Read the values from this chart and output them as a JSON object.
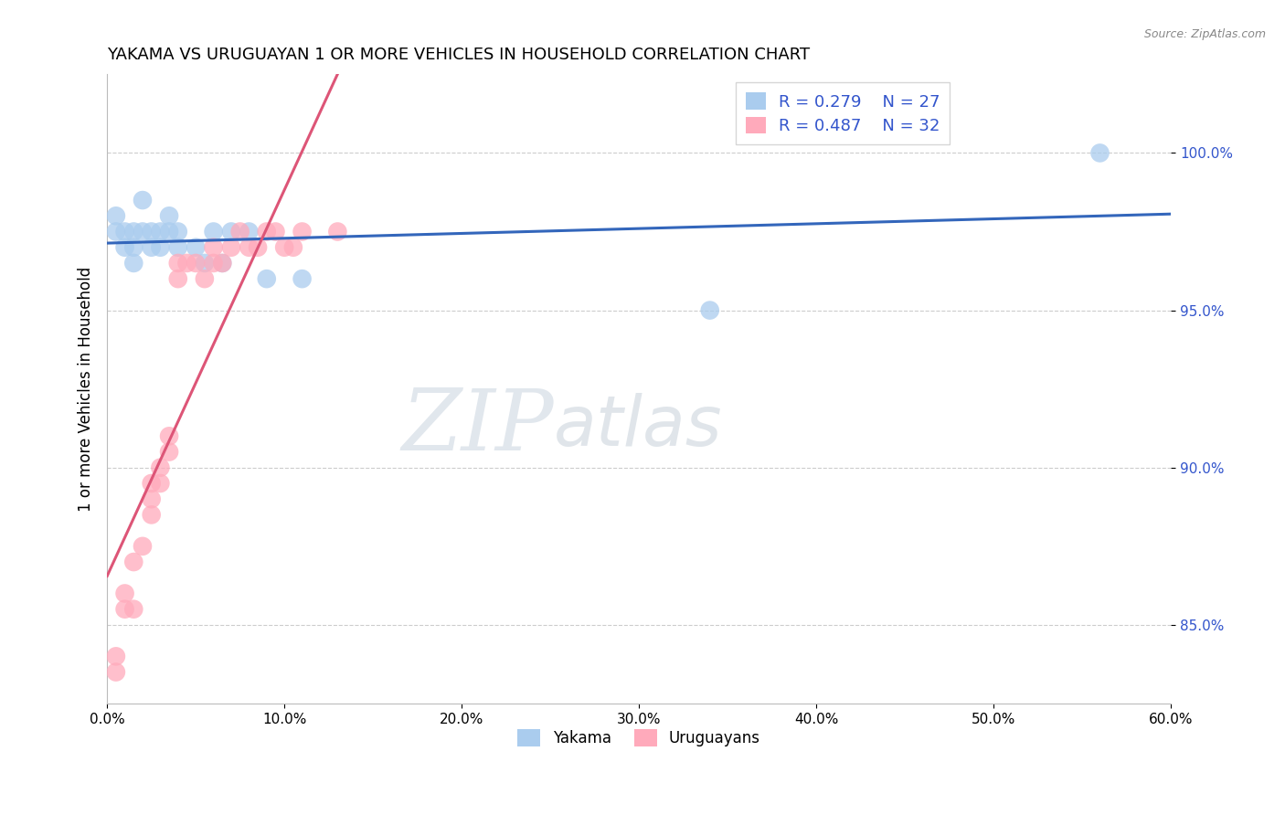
{
  "title": "YAKAMA VS URUGUAYAN 1 OR MORE VEHICLES IN HOUSEHOLD CORRELATION CHART",
  "source": "Source: ZipAtlas.com",
  "xlim": [
    0.0,
    0.6
  ],
  "ylim": [
    0.825,
    1.025
  ],
  "yakama_R": 0.279,
  "yakama_N": 27,
  "uruguayan_R": 0.487,
  "uruguayan_N": 32,
  "yakama_color": "#AACCEE",
  "uruguayan_color": "#FFAABB",
  "yakama_line_color": "#3366BB",
  "uruguayan_line_color": "#DD5577",
  "watermark_zip": "ZIP",
  "watermark_atlas": "atlas",
  "legend_text_color": "#3355CC",
  "yakama_x": [
    0.005,
    0.005,
    0.01,
    0.01,
    0.015,
    0.015,
    0.015,
    0.02,
    0.02,
    0.025,
    0.025,
    0.03,
    0.03,
    0.035,
    0.035,
    0.04,
    0.04,
    0.05,
    0.055,
    0.06,
    0.065,
    0.07,
    0.08,
    0.09,
    0.11,
    0.34,
    0.56
  ],
  "yakama_y": [
    0.98,
    0.975,
    0.975,
    0.97,
    0.975,
    0.97,
    0.965,
    0.985,
    0.975,
    0.975,
    0.97,
    0.975,
    0.97,
    0.98,
    0.975,
    0.975,
    0.97,
    0.97,
    0.965,
    0.975,
    0.965,
    0.975,
    0.975,
    0.96,
    0.96,
    0.95,
    1.0
  ],
  "uruguayan_x": [
    0.005,
    0.005,
    0.01,
    0.01,
    0.015,
    0.015,
    0.02,
    0.025,
    0.025,
    0.025,
    0.03,
    0.03,
    0.035,
    0.035,
    0.04,
    0.04,
    0.045,
    0.05,
    0.055,
    0.06,
    0.06,
    0.065,
    0.07,
    0.075,
    0.08,
    0.085,
    0.09,
    0.095,
    0.1,
    0.105,
    0.11,
    0.13
  ],
  "uruguayan_y": [
    0.835,
    0.84,
    0.855,
    0.86,
    0.855,
    0.87,
    0.875,
    0.885,
    0.895,
    0.89,
    0.895,
    0.9,
    0.91,
    0.905,
    0.965,
    0.96,
    0.965,
    0.965,
    0.96,
    0.97,
    0.965,
    0.965,
    0.97,
    0.975,
    0.97,
    0.97,
    0.975,
    0.975,
    0.97,
    0.97,
    0.975,
    0.975
  ],
  "background_color": "#FFFFFF",
  "grid_color": "#CCCCCC",
  "ylabel_color": "#3355CC",
  "ytick_color": "#3355CC"
}
